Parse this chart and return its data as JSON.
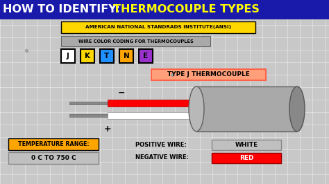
{
  "title_left": "HOW TO IDENTIFY:",
  "title_right": "THERMOCOUPLE TYPES",
  "title_left_color": "#FFFFFF",
  "title_right_color": "#FFFF00",
  "title_bg": "#1a1aaa",
  "ansi_text": "AMERICAN NATIONAL STANDRADS INSTITUTE(ANSI)",
  "ansi_bg": "#FFD700",
  "wire_text": "WIRE COLOR CODING FOR THERMOCOUPLES",
  "wire_bg": "#A9A9A9",
  "type_boxes": [
    {
      "label": "J",
      "bg": "#FFFFFF",
      "border": "#000000"
    },
    {
      "label": "K",
      "bg": "#FFD700",
      "border": "#000000"
    },
    {
      "label": "T",
      "bg": "#1E90FF",
      "border": "#000000"
    },
    {
      "label": "N",
      "bg": "#FFA500",
      "border": "#000000"
    },
    {
      "label": "E",
      "bg": "#9932CC",
      "border": "#000000"
    }
  ],
  "type_j_label": "TYPE J THERMOCOUPLE",
  "type_j_bg": "#FFA07A",
  "type_j_border": "#FF6347",
  "cable_color": "#A9A9A9",
  "cable_highlight": "#C8C8C8",
  "cable_shadow": "#787878",
  "positive_wire_color": "#FFFFFF",
  "negative_wire_color": "#FF0000",
  "temp_range_label": "TEMPERATURE RANGE:",
  "temp_range_bg": "#FFA500",
  "temp_value": "0 C TO 750 C",
  "temp_value_bg": "#C0C0C0",
  "pos_wire_label": "POSITIVE WIRE:",
  "pos_wire_value": "WHITE",
  "pos_wire_value_bg": "#C0C0C0",
  "neg_wire_label": "NEGATIVE WIRE:",
  "neg_wire_value": "RED",
  "neg_wire_value_bg": "#FF0000",
  "background_color": "#C8C8C8",
  "grid_color": "#FFFFFF"
}
